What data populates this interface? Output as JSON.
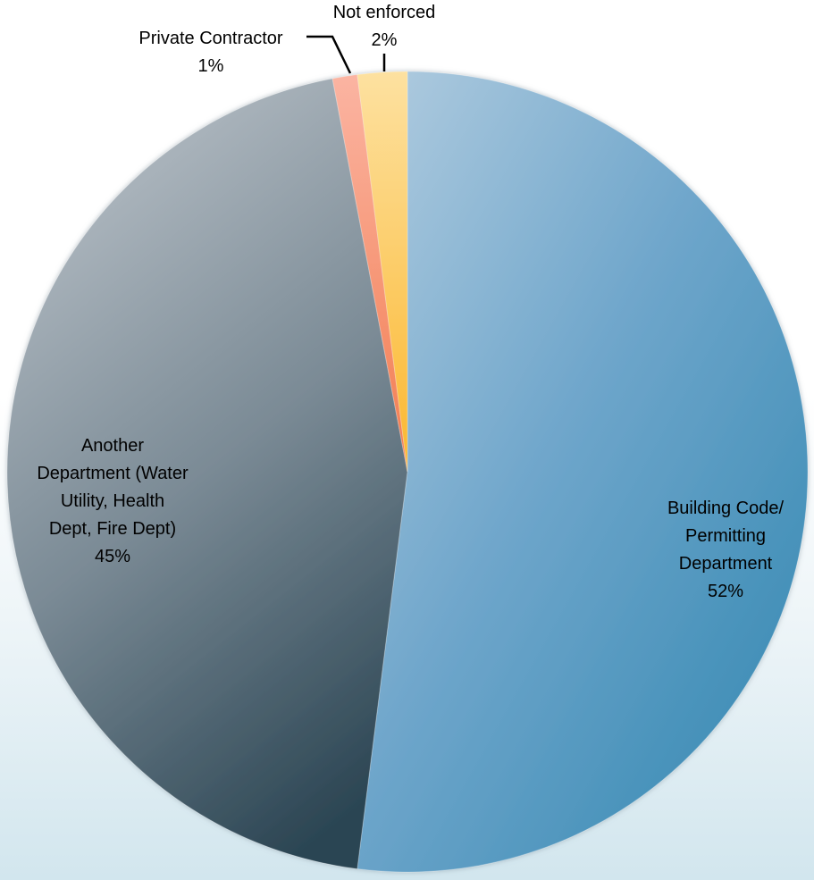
{
  "chart_data": {
    "type": "pie",
    "title": "",
    "start_angle_deg": 0,
    "direction": "clockwise",
    "slices": [
      {
        "label_lines": [
          "Building Code/",
          "Permitting",
          "Department"
        ],
        "value_label": "52%",
        "value": 52,
        "color": "#5f9fc2"
      },
      {
        "label_lines": [
          "Another",
          "Department (Water",
          "Utility, Health",
          "Dept, Fire Dept)"
        ],
        "value_label": "45%",
        "value": 45,
        "color": "#6d7f8b"
      },
      {
        "label_lines": [
          "Private Contractor"
        ],
        "value_label": "1%",
        "value": 1,
        "color": "#f4936f"
      },
      {
        "label_lines": [
          "Not enforced"
        ],
        "value_label": "2%",
        "value": 2,
        "color": "#fcc553"
      }
    ]
  }
}
